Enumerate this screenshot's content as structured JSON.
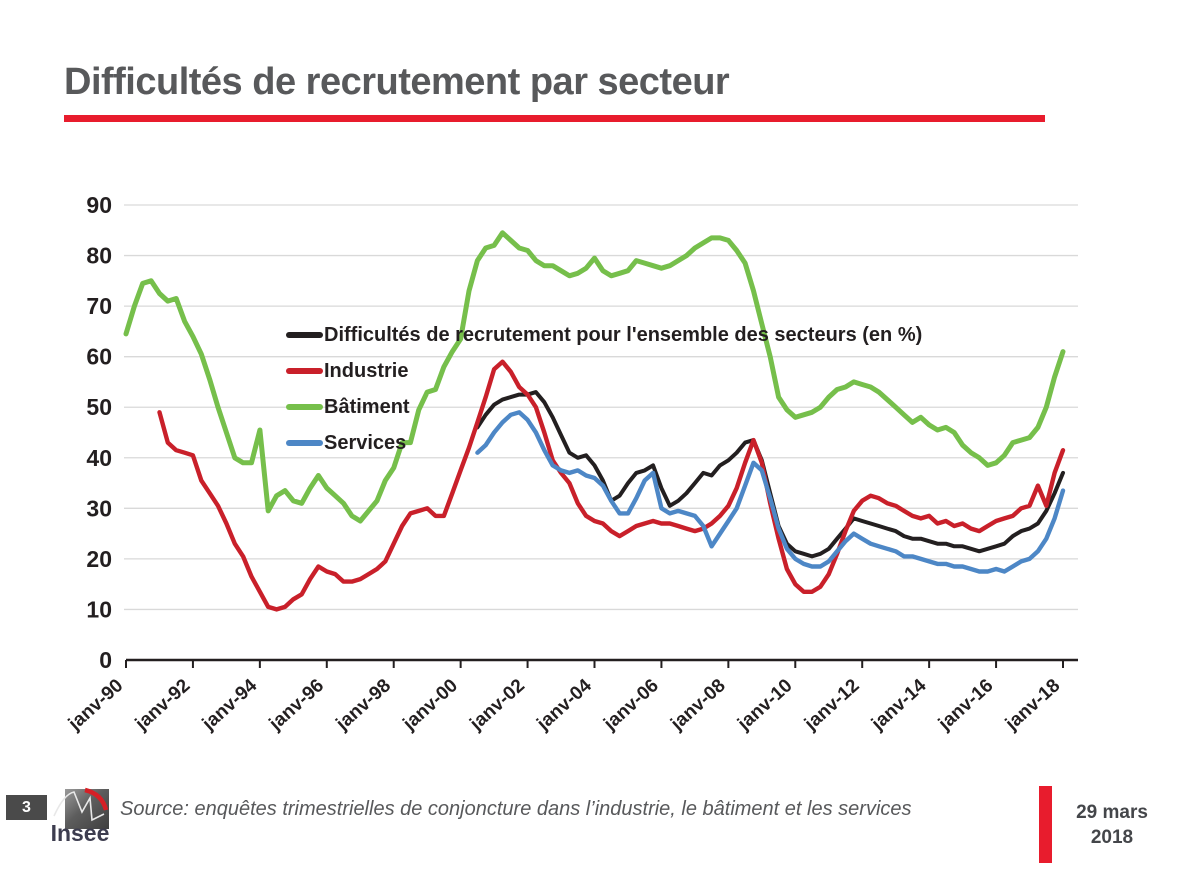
{
  "slide": {
    "title": "Difficultés de recrutement par secteur",
    "page_number": "3",
    "logo_text": "Insee",
    "source": "Source: enquêtes trimestrielles de conjoncture dans l’industrie, le bâtiment et les services",
    "date_line1": "29 mars",
    "date_line2": "2018"
  },
  "colors": {
    "accent_red": "#e81c2d",
    "title_gray": "#58595b",
    "grid": "#d9d9d9",
    "axis": "#231f20"
  },
  "chart_data": {
    "type": "line",
    "title": "",
    "xlabel": "",
    "ylabel": "",
    "frequency": "quarterly",
    "x_start": "janv-90",
    "x_end": "janv-18",
    "x_tick_labels": [
      "janv-90",
      "janv-92",
      "janv-94",
      "janv-96",
      "janv-98",
      "janv-00",
      "janv-02",
      "janv-04",
      "janv-06",
      "janv-08",
      "janv-10",
      "janv-12",
      "janv-14",
      "janv-16",
      "janv-18"
    ],
    "ylim": [
      0,
      90
    ],
    "y_ticks": [
      0,
      10,
      20,
      30,
      40,
      50,
      60,
      70,
      80,
      90
    ],
    "grid": "horizontal",
    "legend_position": "top-left-inside",
    "series": [
      {
        "key": "ensemble",
        "name": "Difficultés de recrutement pour l'ensemble des secteurs (en %)",
        "color": "#231f20",
        "values": [
          null,
          null,
          null,
          null,
          null,
          null,
          null,
          null,
          null,
          null,
          null,
          null,
          null,
          null,
          null,
          null,
          null,
          null,
          null,
          null,
          null,
          null,
          null,
          null,
          null,
          null,
          null,
          null,
          null,
          null,
          null,
          null,
          null,
          null,
          null,
          null,
          null,
          null,
          null,
          null,
          null,
          null,
          46,
          48.5,
          50.5,
          51.5,
          52,
          52.5,
          52.5,
          53,
          51,
          48,
          44.5,
          41,
          40,
          40.5,
          38.5,
          35.5,
          31.5,
          32.5,
          35,
          37,
          37.5,
          38.5,
          34,
          30.5,
          31.5,
          33,
          35,
          37,
          36.5,
          38.5,
          39.5,
          41,
          43,
          43.5,
          39.5,
          33,
          26.5,
          23,
          21.5,
          21,
          20.5,
          21,
          22,
          24,
          26,
          28,
          27.5,
          27,
          26.5,
          26,
          25.5,
          24.5,
          24,
          24,
          23.5,
          23,
          23,
          22.5,
          22.5,
          22,
          21.5,
          22,
          22.5,
          23,
          24.5,
          25.5,
          26,
          27,
          29.5,
          33,
          37
        ]
      },
      {
        "key": "industrie",
        "name": "Industrie",
        "color": "#c9202a",
        "values": [
          null,
          null,
          null,
          null,
          49,
          43,
          41.5,
          41,
          40.5,
          35.5,
          33,
          30.5,
          27,
          23,
          20.5,
          16.5,
          13.5,
          10.5,
          10,
          10.5,
          12,
          13,
          16,
          18.5,
          17.5,
          17,
          15.5,
          15.5,
          16,
          17,
          18,
          19.5,
          23,
          26.5,
          29,
          29.5,
          30,
          28.5,
          28.5,
          33,
          37.5,
          42,
          47,
          52,
          57.5,
          59,
          57,
          54,
          52.5,
          50,
          45,
          39.5,
          37,
          35,
          31,
          28.5,
          27.5,
          27,
          25.5,
          24.5,
          25.5,
          26.5,
          27,
          27.5,
          27,
          27,
          26.5,
          26,
          25.5,
          26,
          27,
          28.5,
          30.5,
          34,
          39,
          43.5,
          39,
          31,
          24,
          18,
          15,
          13.5,
          13.5,
          14.5,
          17,
          21,
          25.5,
          29.5,
          31.5,
          32.5,
          32,
          31,
          30.5,
          29.5,
          28.5,
          28,
          28.5,
          27,
          27.5,
          26.5,
          27,
          26,
          25.5,
          26.5,
          27.5,
          28,
          28.5,
          30,
          30.5,
          34.5,
          30.5,
          37,
          41.5
        ]
      },
      {
        "key": "batiment",
        "name": "Bâtiment",
        "color": "#76bf4b",
        "values": [
          64.5,
          70,
          74.5,
          75,
          72.5,
          71,
          71.5,
          67,
          64,
          60.5,
          55.5,
          50,
          45,
          40,
          39,
          39,
          45.5,
          29.5,
          32.5,
          33.5,
          31.5,
          31,
          34,
          36.5,
          34,
          32.5,
          31,
          28.5,
          27.5,
          29.5,
          31.5,
          35.5,
          38,
          43,
          43,
          49.5,
          53,
          53.5,
          58,
          61,
          63.5,
          73,
          79,
          81.5,
          82,
          84.5,
          83,
          81.5,
          81,
          79,
          78,
          78,
          77,
          76,
          76.5,
          77.5,
          79.5,
          77,
          76,
          76.5,
          77,
          79,
          78.5,
          78,
          77.5,
          78,
          79,
          80,
          81.5,
          82.5,
          83.5,
          83.5,
          83,
          81,
          78.5,
          73,
          66.5,
          60,
          52,
          49.5,
          48,
          48.5,
          49,
          50,
          52,
          53.5,
          54,
          55,
          54.5,
          54,
          53,
          51.5,
          50,
          48.5,
          47,
          48,
          46.5,
          45.5,
          46,
          45,
          42.5,
          41,
          40,
          38.5,
          39,
          40.5,
          43,
          43.5,
          44,
          46,
          50,
          56,
          61
        ]
      },
      {
        "key": "services",
        "name": "Services",
        "color": "#4d87c6",
        "values": [
          null,
          null,
          null,
          null,
          null,
          null,
          null,
          null,
          null,
          null,
          null,
          null,
          null,
          null,
          null,
          null,
          null,
          null,
          null,
          null,
          null,
          null,
          null,
          null,
          null,
          null,
          null,
          null,
          null,
          null,
          null,
          null,
          null,
          null,
          null,
          null,
          null,
          null,
          null,
          null,
          null,
          null,
          41,
          42.5,
          45,
          47,
          48.5,
          49,
          47.5,
          45,
          41.5,
          38.5,
          37.5,
          37,
          37.5,
          36.5,
          36,
          34.5,
          31.5,
          29,
          29,
          32,
          35.5,
          37,
          30,
          29,
          29.5,
          29,
          28.5,
          26.5,
          22.5,
          25,
          27.5,
          30,
          34.5,
          39,
          37.5,
          32,
          26,
          22,
          20,
          19,
          18.5,
          18.5,
          19.5,
          21.5,
          23.5,
          25,
          24,
          23,
          22.5,
          22,
          21.5,
          20.5,
          20.5,
          20,
          19.5,
          19,
          19,
          18.5,
          18.5,
          18,
          17.5,
          17.5,
          18,
          17.5,
          18.5,
          19.5,
          20,
          21.5,
          24,
          28,
          33.5
        ]
      }
    ]
  }
}
